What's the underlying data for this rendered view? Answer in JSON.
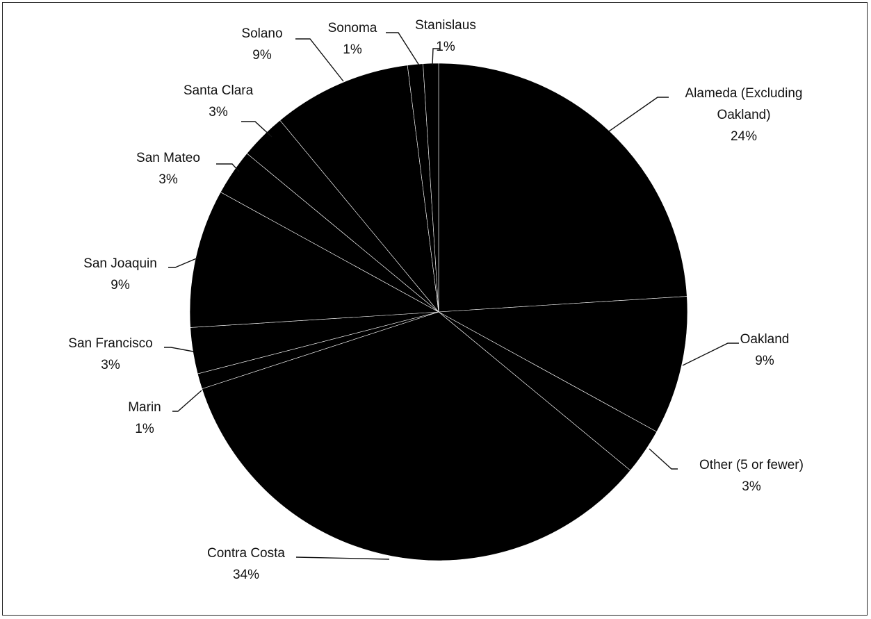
{
  "chart_data": {
    "type": "pie",
    "title": "",
    "start_angle_deg": 0,
    "direction": "clockwise",
    "colors": {
      "slice_fill": "#000000",
      "slice_edge": "#ffffff",
      "text": "#111111"
    },
    "slices": [
      {
        "label_lines": [
          "Alameda (Excluding",
          "Oakland)"
        ],
        "pct_label": "24%",
        "value": 24
      },
      {
        "label_lines": [
          "Oakland"
        ],
        "pct_label": "9%",
        "value": 9
      },
      {
        "label_lines": [
          "Other (5 or fewer)"
        ],
        "pct_label": "3%",
        "value": 3
      },
      {
        "label_lines": [
          "Contra Costa"
        ],
        "pct_label": "34%",
        "value": 34
      },
      {
        "label_lines": [
          "Marin"
        ],
        "pct_label": "1%",
        "value": 1
      },
      {
        "label_lines": [
          "San Francisco"
        ],
        "pct_label": "3%",
        "value": 3
      },
      {
        "label_lines": [
          "San Joaquin"
        ],
        "pct_label": "9%",
        "value": 9
      },
      {
        "label_lines": [
          "San Mateo"
        ],
        "pct_label": "3%",
        "value": 3
      },
      {
        "label_lines": [
          "Santa Clara"
        ],
        "pct_label": "3%",
        "value": 3
      },
      {
        "label_lines": [
          "Solano"
        ],
        "pct_label": "9%",
        "value": 9
      },
      {
        "label_lines": [
          "Sonoma"
        ],
        "pct_label": "1%",
        "value": 1
      },
      {
        "label_lines": [
          "Stanislaus"
        ],
        "pct_label": "1%",
        "value": 1
      }
    ]
  }
}
